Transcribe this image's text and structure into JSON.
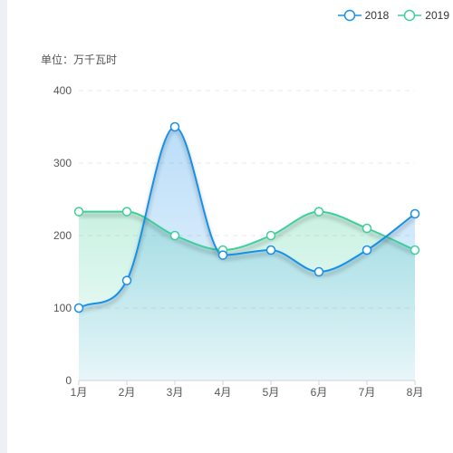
{
  "chart_data": {
    "type": "area",
    "ylabel": "单位：万千瓦时",
    "categories": [
      "1月",
      "2月",
      "3月",
      "4月",
      "5月",
      "6月",
      "7月",
      "8月"
    ],
    "y_ticks": [
      "0",
      "100",
      "200",
      "300",
      "400"
    ],
    "ylim": [
      0,
      400
    ],
    "grid": true,
    "legend_position": "top-right",
    "series": [
      {
        "name": "2018",
        "values": [
          100,
          138,
          350,
          173,
          180,
          150,
          180,
          230
        ],
        "color": "#1890e8"
      },
      {
        "name": "2019",
        "values": [
          233,
          233,
          200,
          180,
          200,
          233,
          210,
          180
        ],
        "color": "#3ecf9a"
      }
    ]
  }
}
